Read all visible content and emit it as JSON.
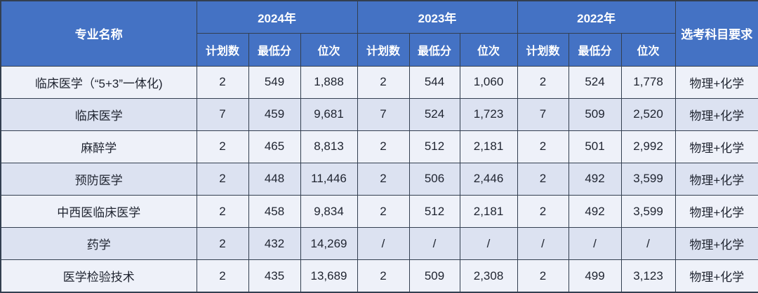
{
  "colors": {
    "header_bg": "#4472c4",
    "header_text": "#ffffff",
    "row_odd_bg": "#eef1f9",
    "row_even_bg": "#dce2f1",
    "border": "#333f50",
    "body_text": "#1f2430"
  },
  "chart_data": {
    "type": "table",
    "title": "",
    "header": {
      "name_col": "专业名称",
      "year_groups": [
        "2024年",
        "2023年",
        "2022年"
      ],
      "sub_headers": [
        "计划数",
        "最低分",
        "位次"
      ],
      "subject_col": "选考科目要求"
    },
    "columns": [
      "专业名称",
      "2024年 计划数",
      "2024年 最低分",
      "2024年 位次",
      "2023年 计划数",
      "2023年 最低分",
      "2023年 位次",
      "2022年 计划数",
      "2022年 最低分",
      "2022年 位次",
      "选考科目要求"
    ],
    "rows": [
      {
        "major": "临床医学（“5+3”一体化)",
        "values": [
          "2",
          "549",
          "1,888",
          "2",
          "544",
          "1,060",
          "2",
          "524",
          "1,778"
        ],
        "subjects": "物理+化学"
      },
      {
        "major": "临床医学",
        "values": [
          "7",
          "459",
          "9,681",
          "7",
          "524",
          "1,723",
          "7",
          "509",
          "2,520"
        ],
        "subjects": "物理+化学"
      },
      {
        "major": "麻醉学",
        "values": [
          "2",
          "465",
          "8,813",
          "2",
          "512",
          "2,181",
          "2",
          "501",
          "2,992"
        ],
        "subjects": "物理+化学"
      },
      {
        "major": "预防医学",
        "values": [
          "2",
          "448",
          "11,446",
          "2",
          "506",
          "2,446",
          "2",
          "492",
          "3,599"
        ],
        "subjects": "物理+化学"
      },
      {
        "major": "中西医临床医学",
        "values": [
          "2",
          "458",
          "9,834",
          "2",
          "512",
          "2,181",
          "2",
          "492",
          "3,599"
        ],
        "subjects": "物理+化学"
      },
      {
        "major": "药学",
        "values": [
          "2",
          "432",
          "14,269",
          "/",
          "/",
          "/",
          "/",
          "/",
          "/"
        ],
        "subjects": "物理+化学"
      },
      {
        "major": "医学检验技术",
        "values": [
          "2",
          "435",
          "13,689",
          "2",
          "509",
          "2,308",
          "2",
          "499",
          "3,123"
        ],
        "subjects": "物理+化学"
      }
    ]
  }
}
